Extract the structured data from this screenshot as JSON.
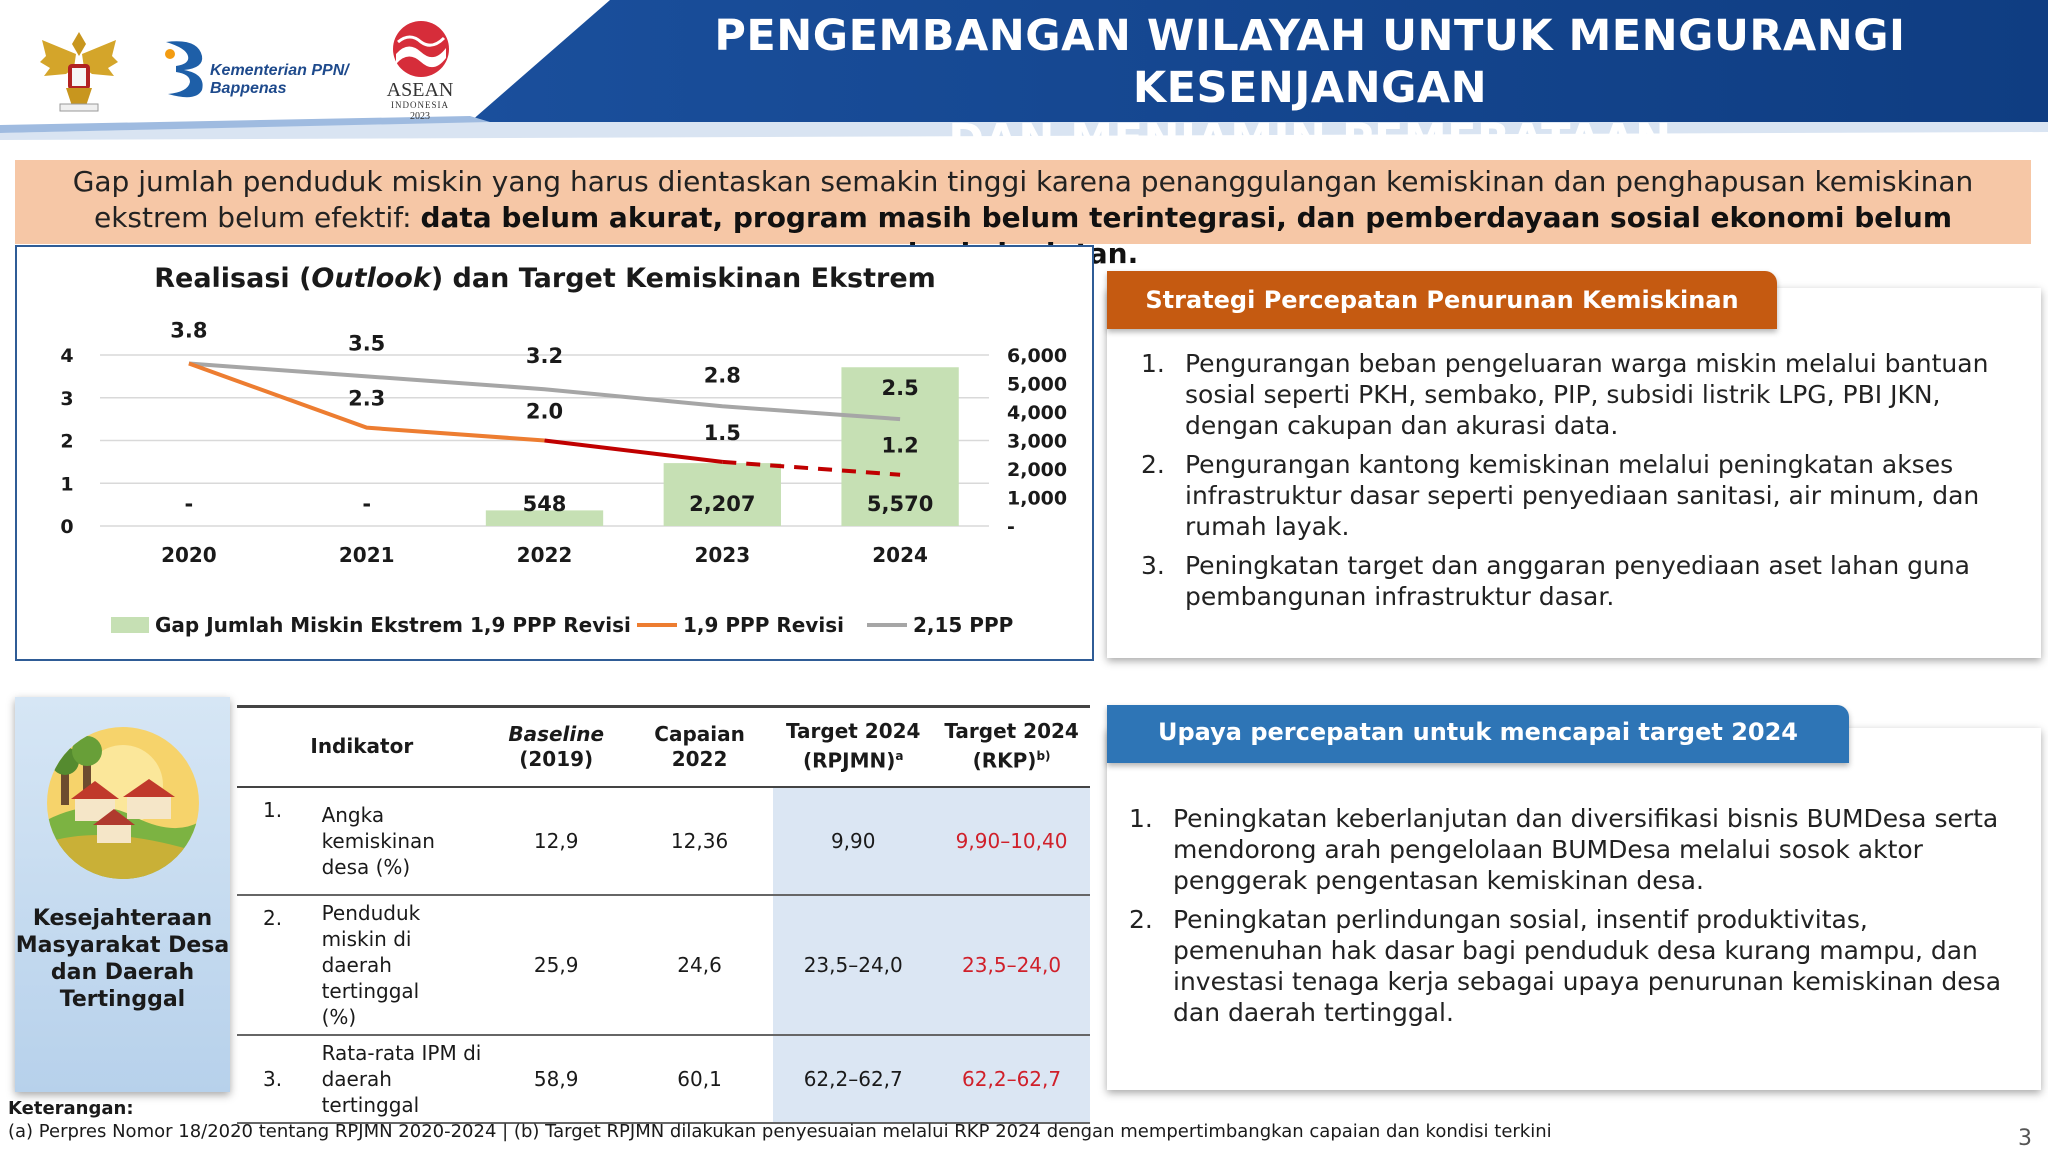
{
  "header": {
    "title_line1": "PENGEMBANGAN WILAYAH UNTUK MENGURANGI KESENJANGAN",
    "title_line2": "DAN MENJAMIN PEMERATAAN",
    "logo_kementerian_line1": "Kementerian PPN/",
    "logo_kementerian_line2": "Bappenas",
    "logo_asean_line1": "ASEAN",
    "logo_asean_line2": "INDONESIA",
    "logo_asean_line3": "2023"
  },
  "banner": {
    "text_normal": "Gap jumlah penduduk miskin yang harus dientaskan semakin tinggi karena penanggulangan kemiskinan dan penghapusan kemiskinan ekstrem belum efektif: ",
    "text_bold": "data belum akurat, program masih belum terintegrasi, dan pemberdayaan sosial ekonomi belum berkelanjutan."
  },
  "chart_data": {
    "type": "bar",
    "title_pre": "Realisasi (",
    "title_italic": "Outlook",
    "title_post": ") dan Target Kemiskinan Ekstrem",
    "categories": [
      "2020",
      "2021",
      "2022",
      "2023",
      "2024"
    ],
    "y_left_ticks": [
      "0",
      "1",
      "2",
      "3",
      "4"
    ],
    "y_left_lim": [
      0,
      4
    ],
    "y_right_ticks": [
      "-",
      "1,000",
      "2,000",
      "3,000",
      "4,000",
      "5,000",
      "6,000"
    ],
    "y_right_lim": [
      0,
      6000
    ],
    "grid": true,
    "legend_position": "bottom",
    "series": [
      {
        "name": "Gap Jumlah Miskin Ekstrem 1,9 PPP Revisi",
        "kind": "bar",
        "axis": "right",
        "values": [
          0,
          0,
          548,
          2207,
          5570
        ],
        "labels": [
          "-",
          "-",
          "548",
          "2,207",
          "5,570"
        ],
        "color": "#c6e0b4"
      },
      {
        "name": "1,9 PPP Revisi",
        "kind": "line",
        "axis": "left",
        "values": [
          3.8,
          2.3,
          2.0,
          1.5,
          1.2
        ],
        "labels": [
          "",
          "2.3",
          "2.0",
          "1.5",
          "1.2"
        ],
        "color": "#ed7d31",
        "target_color": "#c00000"
      },
      {
        "name": "2,15 PPP",
        "kind": "line",
        "axis": "left",
        "values": [
          3.8,
          3.5,
          3.2,
          2.8,
          2.5
        ],
        "labels": [
          "3.8",
          "3.5",
          "3.2",
          "2.8",
          "2.5"
        ],
        "color": "#a6a6a6"
      }
    ]
  },
  "strategy": {
    "tab_label": "Strategi Percepatan Penurunan Kemiskinan Ekstrem",
    "items": [
      {
        "num": "1.",
        "text": "Pengurangan beban pengeluaran warga miskin melalui bantuan sosial seperti PKH, sembako, PIP, subsidi listrik LPG, PBI JKN, dengan cakupan dan akurasi data."
      },
      {
        "num": "2.",
        "text": "Pengurangan kantong kemiskinan melalui peningkatan akses infrastruktur dasar seperti penyediaan sanitasi, air minum, dan rumah layak."
      },
      {
        "num": "3.",
        "text": "Peningkatan target dan anggaran penyediaan aset lahan guna pembangunan infrastruktur dasar."
      }
    ]
  },
  "upaya": {
    "tab_label": "Upaya percepatan untuk mencapai target 2024",
    "items": [
      {
        "num": "1.",
        "text": "Peningkatan keberlanjutan dan diversifikasi bisnis BUMDesa serta mendorong arah pengelolaan BUMDesa melalui sosok aktor penggerak pengentasan kemiskinan desa."
      },
      {
        "num": "2.",
        "text": "Peningkatan perlindungan sosial, insentif produktivitas, pemenuhan hak dasar bagi penduduk desa kurang mampu, dan investasi tenaga kerja sebagai upaya penurunan kemiskinan desa dan daerah tertinggal."
      }
    ]
  },
  "desa_card": {
    "label": "Kesejahteraan Masyarakat Desa dan Daerah Tertinggal"
  },
  "table": {
    "headers": {
      "indikator": "Indikator",
      "baseline_l1": "Baseline",
      "baseline_l2": "(2019)",
      "capaian_l1": "Capaian",
      "capaian_l2": "2022",
      "t_rpjmn_l1": "Target 2024",
      "t_rpjmn_l2": "(RPJMN)",
      "t_rpjmn_sup": "a",
      "t_rkp_l1": "Target 2024",
      "t_rkp_l2": "(RKP)",
      "t_rkp_sup": "b)"
    },
    "rows": [
      {
        "num": "1.",
        "indikator": "Angka kemiskinan desa (%)",
        "baseline": "12,9",
        "capaian": "12,36",
        "rpjmn": "9,90",
        "rkp": "9,90–10,40"
      },
      {
        "num": "2.",
        "indikator": "Penduduk miskin di daerah tertinggal (%)",
        "baseline": "25,9",
        "capaian": "24,6",
        "rpjmn": "23,5–24,0",
        "rkp": "23,5–24,0"
      },
      {
        "num": "3.",
        "indikator": "Rata-rata IPM di daerah tertinggal",
        "baseline": "58,9",
        "capaian": "60,1",
        "rpjmn": "62,2–62,7",
        "rkp": "62,2–62,7"
      }
    ]
  },
  "footer": {
    "note_title": "Keterangan:",
    "note_text": "(a) Perpres Nomor 18/2020 tentang RPJMN 2020-2024 | (b) Target RPJMN dilakukan penyesuaian melalui RKP 2024 dengan mempertimbangkan capaian dan kondisi terkini",
    "page_number": "3"
  }
}
